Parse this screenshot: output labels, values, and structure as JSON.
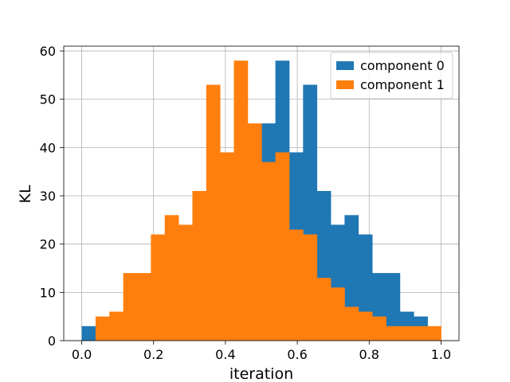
{
  "chart_data": {
    "type": "bar",
    "subtype": "histogram",
    "title": "",
    "xlabel": "iteration",
    "ylabel": "KL",
    "xlim": [
      -0.05,
      1.05
    ],
    "ylim": [
      0,
      61
    ],
    "x_ticks": [
      0.0,
      0.2,
      0.4,
      0.6,
      0.8,
      1.0
    ],
    "x_tick_labels": [
      "0.0",
      "0.2",
      "0.4",
      "0.6",
      "0.8",
      "1.0"
    ],
    "y_ticks": [
      0,
      10,
      20,
      30,
      40,
      50,
      60
    ],
    "y_tick_labels": [
      "0",
      "10",
      "20",
      "30",
      "40",
      "50",
      "60"
    ],
    "grid": true,
    "legend_position": "top-right",
    "bin_edges": [
      0.0,
      0.0385,
      0.077,
      0.1155,
      0.154,
      0.1925,
      0.231,
      0.2695,
      0.308,
      0.3465,
      0.385,
      0.4235,
      0.462,
      0.5005,
      0.539,
      0.5775,
      0.616,
      0.6545,
      0.693,
      0.7315,
      0.77,
      0.8085,
      0.847,
      0.8855,
      0.924,
      0.9625,
      1.0
    ],
    "series": [
      {
        "name": "component 0",
        "color": "#1f77b4",
        "values": [
          3,
          0,
          0,
          0,
          0,
          0,
          0,
          0,
          0,
          0,
          0,
          0,
          0,
          45,
          58,
          39,
          53,
          31,
          24,
          26,
          22,
          14,
          14,
          6,
          5,
          0
        ]
      },
      {
        "name": "component 1",
        "color": "#ff7f0e",
        "values": [
          0,
          5,
          6,
          14,
          14,
          22,
          26,
          24,
          31,
          53,
          39,
          58,
          45,
          37,
          39,
          23,
          22,
          13,
          11,
          7,
          6,
          5,
          3,
          3,
          3,
          3
        ]
      }
    ]
  }
}
